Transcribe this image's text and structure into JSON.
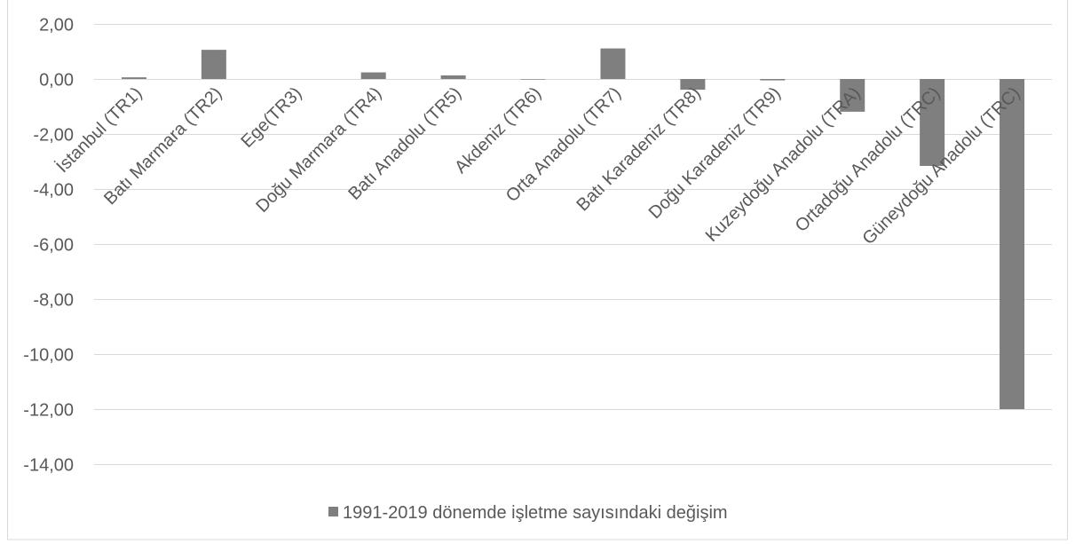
{
  "chart_data": {
    "type": "bar",
    "categories": [
      "İstanbul (TR1)",
      "Batı Marmara (TR2)",
      "Ege(TR3)",
      "Doğu Marmara (TR4)",
      "Batı Anadolu (TR5)",
      "Akdeniz (TR6)",
      "Orta Anadolu (TR7)",
      "Batı Karadeniz (TR8)",
      "Doğu Karadeniz (TR9)",
      "Kuzeydoğu Anadolu (TRA)",
      "Ortadoğu Anadolu (TRC)",
      "Güneydoğu Anadolu (TRC)"
    ],
    "series": [
      {
        "name": "1991-2019 dönemde işletme sayısındaki değişim",
        "values": [
          0.06,
          1.06,
          0.0,
          0.24,
          0.13,
          -0.02,
          1.11,
          -0.39,
          -0.05,
          -1.19,
          -3.16,
          -12.0
        ],
        "color": "#7f7f7f"
      }
    ],
    "ylim": [
      -14,
      2
    ],
    "yticks": [
      2,
      0,
      -2,
      -4,
      -6,
      -8,
      -10,
      -12,
      -14
    ],
    "ytick_labels": [
      "2,00",
      "0,00",
      "-2,00",
      "-4,00",
      "-6,00",
      "-8,00",
      "-10,00",
      "-12,00",
      "-14,00"
    ],
    "grid": true,
    "legend": "bottom",
    "colors": {
      "grid": "#d9d9d9",
      "text": "#595959",
      "border": "#d9d9d9"
    }
  }
}
